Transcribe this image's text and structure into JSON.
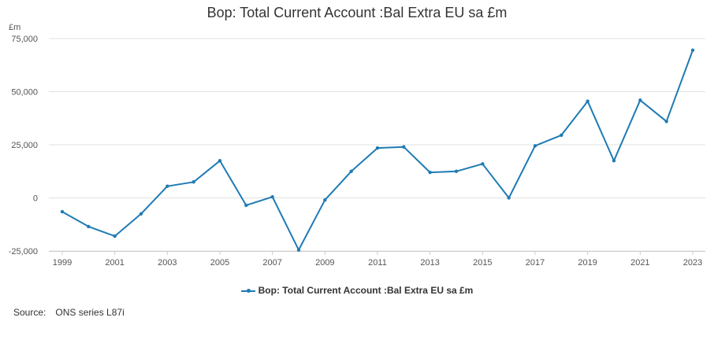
{
  "chart_data": {
    "type": "line",
    "title": "Bop: Total Current Account :Bal Extra EU sa £m",
    "ylabel": "£m",
    "xlabel": "",
    "x": [
      1999,
      2000,
      2001,
      2002,
      2003,
      2004,
      2005,
      2006,
      2007,
      2008,
      2009,
      2010,
      2011,
      2012,
      2013,
      2014,
      2015,
      2016,
      2017,
      2018,
      2019,
      2020,
      2021,
      2022,
      2023
    ],
    "x_ticks": [
      1999,
      2001,
      2003,
      2005,
      2007,
      2009,
      2011,
      2013,
      2015,
      2017,
      2019,
      2021,
      2023
    ],
    "y_ticks": [
      -25000,
      0,
      25000,
      50000,
      75000
    ],
    "y_tick_labels": [
      "-25,000",
      "0",
      "25,000",
      "50,000",
      "75,000"
    ],
    "ylim": [
      -25000,
      75000
    ],
    "xlim": [
      1999,
      2023
    ],
    "grid": true,
    "legend_position": "bottom",
    "series": [
      {
        "name": "Bop: Total Current Account :Bal Extra EU sa £m",
        "color": "#1f7bb4",
        "values": [
          -6500,
          -13500,
          -18000,
          -7500,
          5500,
          7500,
          17500,
          -3500,
          500,
          -24500,
          -1000,
          12500,
          23500,
          24000,
          12000,
          12500,
          16000,
          0,
          24500,
          29500,
          45500,
          17500,
          46000,
          36000,
          69500
        ]
      }
    ]
  },
  "legend": {
    "label": "Bop: Total Current Account :Bal Extra EU sa £m"
  },
  "source": {
    "label": "Source:",
    "value": "ONS series L87i"
  }
}
